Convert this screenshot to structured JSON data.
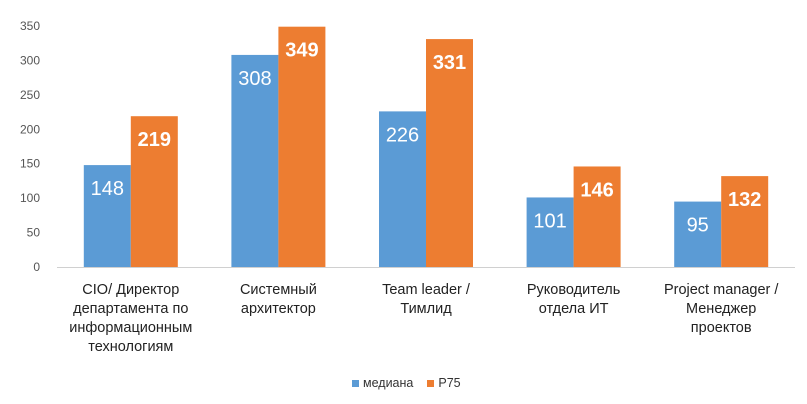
{
  "chart_data": {
    "type": "bar",
    "categories": [
      [
        "CIO/ Директор",
        "департамента по",
        "информационным",
        "технологиям"
      ],
      [
        "Системный",
        "архитектор"
      ],
      [
        "Team leader /",
        "Тимлид"
      ],
      [
        "Руководитель",
        "отдела ИТ"
      ],
      [
        "Project manager /",
        "Менеджер",
        "проектов"
      ]
    ],
    "series": [
      {
        "name": "медиана",
        "values": [
          148,
          308,
          226,
          101,
          95
        ],
        "color": "#5B9BD5"
      },
      {
        "name": "P75",
        "values": [
          219,
          349,
          331,
          146,
          132
        ],
        "color": "#ED7D31"
      }
    ],
    "yticks": [
      0,
      50,
      100,
      150,
      200,
      250,
      300,
      350
    ],
    "ylim": [
      0,
      350
    ],
    "grid": false,
    "legend_position": "bottom"
  }
}
